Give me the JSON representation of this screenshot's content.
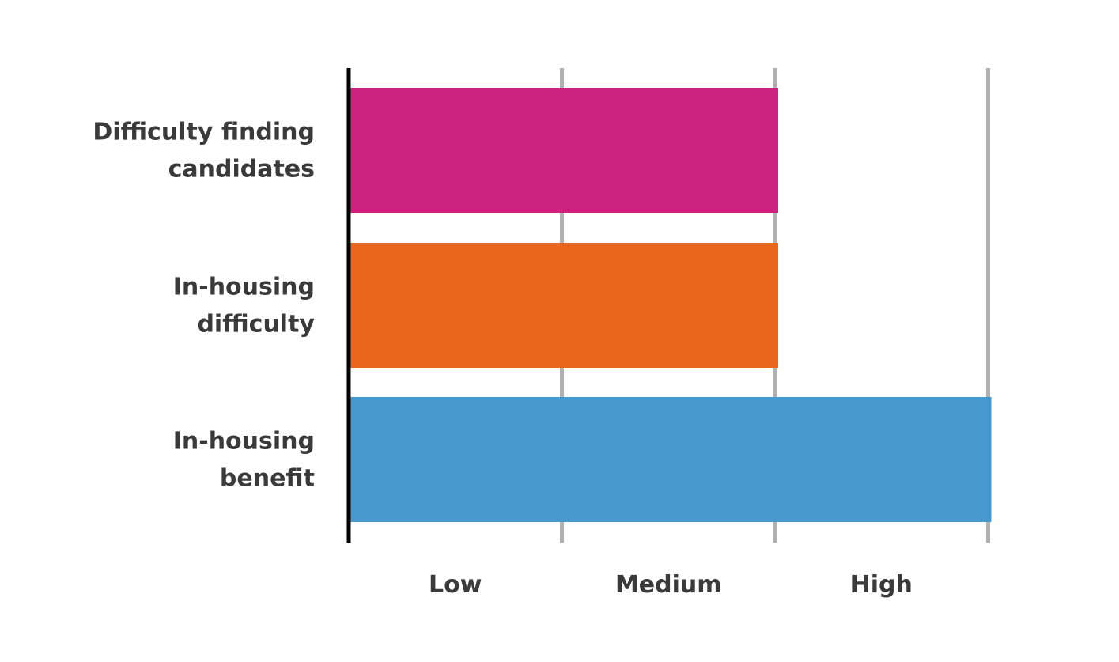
{
  "chart_data": {
    "type": "bar",
    "orientation": "horizontal",
    "categories": [
      [
        "Difficulty finding",
        "candidates"
      ],
      [
        "In-housing",
        "difficulty"
      ],
      [
        "In-housing",
        "benefit"
      ]
    ],
    "values": [
      2,
      2,
      3
    ],
    "colors": [
      "#cb2280",
      "#ea661c",
      "#4599cf"
    ],
    "xlim": [
      0,
      3
    ],
    "x_tick_labels": [
      "Low",
      "Medium",
      "High"
    ],
    "grid": true,
    "grid_color": "#b0b0b0",
    "axis_color": "#000000",
    "text_color": "#3a3a3a",
    "title": "",
    "xlabel": "",
    "ylabel": ""
  }
}
